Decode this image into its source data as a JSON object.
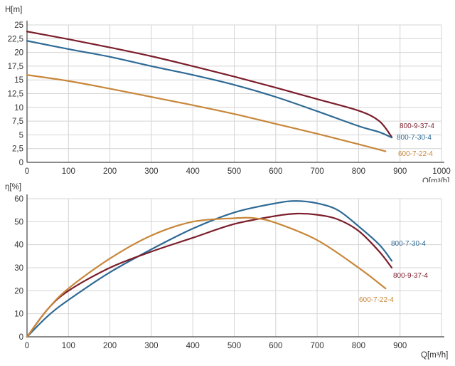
{
  "chart_data": [
    {
      "type": "line",
      "ylabel": "H[m]",
      "xlabel": "Q[m³/h]",
      "xlim": [
        0,
        1000
      ],
      "ylim": [
        0,
        25
      ],
      "x_ticks": [
        "0",
        "100",
        "200",
        "300",
        "400",
        "500",
        "600",
        "700",
        "800",
        "900",
        "1000"
      ],
      "y_ticks": [
        "0",
        "2,5",
        "5",
        "7,5",
        "10",
        "12,5",
        "15",
        "17,5",
        "20",
        "22,5",
        "25"
      ],
      "grid": true,
      "series": [
        {
          "name": "800-9-37-4",
          "color": "#7b1e2b",
          "x": [
            0,
            100,
            200,
            300,
            400,
            500,
            600,
            700,
            800,
            850,
            880
          ],
          "y": [
            23.8,
            22.4,
            20.9,
            19.3,
            17.5,
            15.6,
            13.6,
            11.5,
            9.4,
            7.5,
            4.6
          ]
        },
        {
          "name": "800-7-30-4",
          "color": "#2e6a95",
          "x": [
            0,
            100,
            200,
            300,
            400,
            500,
            600,
            700,
            800,
            850,
            880
          ],
          "y": [
            22.1,
            20.6,
            19.2,
            17.5,
            15.9,
            14.1,
            11.9,
            9.3,
            6.6,
            5.5,
            4.5
          ]
        },
        {
          "name": "600-7-22-4",
          "color": "#c8873a",
          "x": [
            0,
            100,
            200,
            300,
            400,
            500,
            600,
            700,
            800,
            865
          ],
          "y": [
            15.9,
            14.8,
            13.4,
            11.9,
            10.4,
            8.8,
            7.0,
            5.2,
            3.3,
            2.0
          ]
        }
      ]
    },
    {
      "type": "line",
      "ylabel": "η[%]",
      "xlabel": "Q[m³/h]",
      "xlim": [
        0,
        1000
      ],
      "ylim": [
        0,
        60
      ],
      "x_ticks": [
        "0",
        "100",
        "200",
        "300",
        "400",
        "500",
        "600",
        "700",
        "800",
        "900"
      ],
      "y_ticks": [
        "0",
        "10",
        "20",
        "30",
        "40",
        "50",
        "60"
      ],
      "grid": true,
      "series": [
        {
          "name": "800-7-30-4",
          "color": "#2e6a95",
          "x": [
            0,
            50,
            100,
            200,
            300,
            400,
            500,
            600,
            650,
            700,
            750,
            800,
            850,
            880
          ],
          "y": [
            0,
            9,
            16,
            28,
            38,
            47,
            54,
            58,
            59,
            58,
            55,
            48,
            40,
            33
          ]
        },
        {
          "name": "800-9-37-4",
          "color": "#7b1e2b",
          "x": [
            0,
            50,
            100,
            200,
            300,
            400,
            500,
            600,
            650,
            700,
            750,
            800,
            850,
            880
          ],
          "y": [
            0,
            12,
            20,
            30,
            37,
            43,
            49,
            52.5,
            53.5,
            53,
            51,
            46,
            37,
            30
          ]
        },
        {
          "name": "600-7-22-4",
          "color": "#c8873a",
          "x": [
            0,
            50,
            100,
            200,
            300,
            400,
            500,
            550,
            600,
            700,
            800,
            865
          ],
          "y": [
            0,
            12,
            21,
            34,
            44,
            50,
            51.5,
            51.5,
            49.5,
            42,
            30,
            21
          ]
        }
      ]
    }
  ]
}
